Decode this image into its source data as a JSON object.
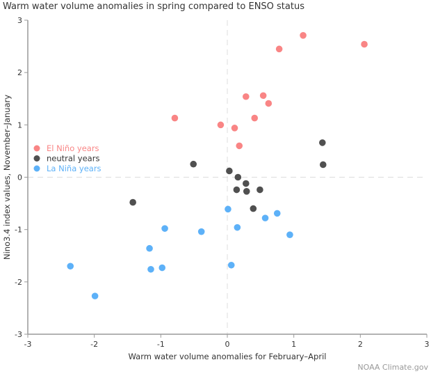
{
  "chart_data": {
    "type": "scatter",
    "title": "Warm water volume anomalies in spring compared to ENSO status",
    "xlabel": "Warm water volume anomalies for February–April",
    "ylabel": "Nino3.4 index values, November–January",
    "xlim": [
      -3,
      3
    ],
    "ylim": [
      -3,
      3
    ],
    "xticks": [
      -3,
      -2,
      -1,
      0,
      1,
      2,
      3
    ],
    "yticks": [
      -3,
      -2,
      -1,
      0,
      1,
      2,
      3
    ],
    "grid": false,
    "zero_lines": true,
    "legend_position": "left",
    "series": [
      {
        "name": "El Niño years",
        "color": "#f98585",
        "points": [
          [
            1.14,
            2.71
          ],
          [
            2.06,
            2.54
          ],
          [
            0.78,
            2.45
          ],
          [
            0.28,
            1.54
          ],
          [
            0.54,
            1.56
          ],
          [
            0.62,
            1.41
          ],
          [
            0.41,
            1.13
          ],
          [
            -0.79,
            1.13
          ],
          [
            -0.1,
            1.0
          ],
          [
            0.11,
            0.94
          ],
          [
            0.18,
            0.6
          ]
        ]
      },
      {
        "name": "neutral years",
        "color": "#505050",
        "points": [
          [
            1.43,
            0.66
          ],
          [
            1.44,
            0.24
          ],
          [
            -0.51,
            0.25
          ],
          [
            0.03,
            0.12
          ],
          [
            0.16,
            0.0
          ],
          [
            -1.42,
            -0.48
          ],
          [
            0.14,
            -0.24
          ],
          [
            0.28,
            -0.12
          ],
          [
            0.29,
            -0.27
          ],
          [
            0.49,
            -0.24
          ],
          [
            0.39,
            -0.6
          ]
        ]
      },
      {
        "name": "La Niña years",
        "color": "#5db1f8",
        "points": [
          [
            0.75,
            -0.69
          ],
          [
            0.57,
            -0.78
          ],
          [
            0.94,
            -1.1
          ],
          [
            0.01,
            -0.61
          ],
          [
            0.15,
            -0.96
          ],
          [
            -0.94,
            -0.98
          ],
          [
            -0.39,
            -1.04
          ],
          [
            0.06,
            -1.68
          ],
          [
            -1.17,
            -1.36
          ],
          [
            -1.15,
            -1.76
          ],
          [
            -0.98,
            -1.73
          ],
          [
            -2.36,
            -1.7
          ],
          [
            -1.99,
            -2.27
          ]
        ]
      }
    ]
  },
  "credit": "NOAA Climate.gov"
}
